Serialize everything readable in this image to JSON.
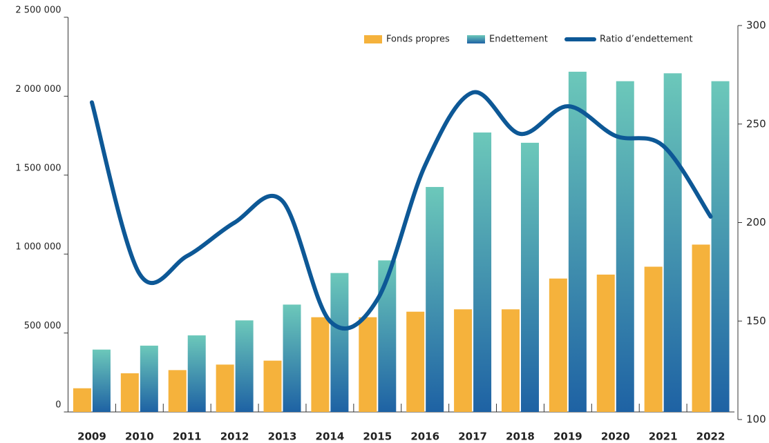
{
  "chart_data": {
    "type": "bar",
    "categories": [
      "2009",
      "2010",
      "2011",
      "2012",
      "2013",
      "2014",
      "2015",
      "2016",
      "2017",
      "2018",
      "2019",
      "2020",
      "2021",
      "2022"
    ],
    "series": [
      {
        "name": "Fonds propres",
        "type": "bar",
        "color": "#f5b23c",
        "values": [
          150000,
          245000,
          265000,
          300000,
          325000,
          600000,
          600000,
          635000,
          650000,
          650000,
          845000,
          870000,
          920000,
          1060000
        ]
      },
      {
        "name": "Endettement",
        "type": "bar",
        "color": "#1e62a4",
        "values": [
          395000,
          420000,
          485000,
          580000,
          680000,
          880000,
          960000,
          1425000,
          1770000,
          1705000,
          2155000,
          2095000,
          2145000,
          2095000
        ]
      },
      {
        "name": "Ratio d’endettement",
        "type": "line",
        "axis": "y2",
        "color": "#0d5896",
        "values": [
          261,
          174,
          183,
          200,
          211,
          150,
          161,
          229,
          266,
          245,
          259,
          244,
          239,
          203
        ]
      }
    ],
    "ylim": [
      0,
      2500000
    ],
    "yticks": [
      0,
      {
        "value": 500000,
        "label": "500 000"
      },
      {
        "value": 1000000,
        "label": "1 000 000"
      },
      {
        "value": 1500000,
        "label": "1 500 000"
      },
      {
        "value": 2000000,
        "label": "2 000 000"
      },
      {
        "value": 2500000,
        "label": "2 500 000"
      }
    ],
    "y2lim": [
      100,
      300
    ],
    "y2ticks": [
      100,
      150,
      200,
      250,
      300
    ],
    "legend": "top-right"
  }
}
